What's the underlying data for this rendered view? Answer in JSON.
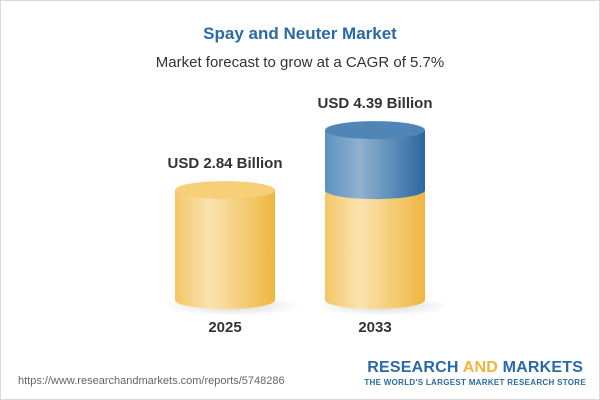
{
  "title": "Spay and Neuter Market",
  "subtitle": "Market forecast to grow at a CAGR of 5.7%",
  "chart_data": {
    "type": "bar",
    "style": "3d-cylinder",
    "categories": [
      "2025",
      "2033"
    ],
    "values": [
      2.84,
      4.39
    ],
    "data_labels": [
      "USD 2.84 Billion",
      "USD 4.39 Billion"
    ],
    "unit": "USD Billion",
    "cagr": "5.7%",
    "colors": {
      "base": "#f2c25a",
      "growth": "#3d7ab0"
    }
  },
  "footer": {
    "url": "https://www.researchandmarkets.com/reports/5748286",
    "logo_part1": "RESEARCH ",
    "logo_part2": "AND",
    "logo_part3": " MARKETS",
    "tagline": "THE WORLD'S LARGEST MARKET RESEARCH STORE"
  }
}
